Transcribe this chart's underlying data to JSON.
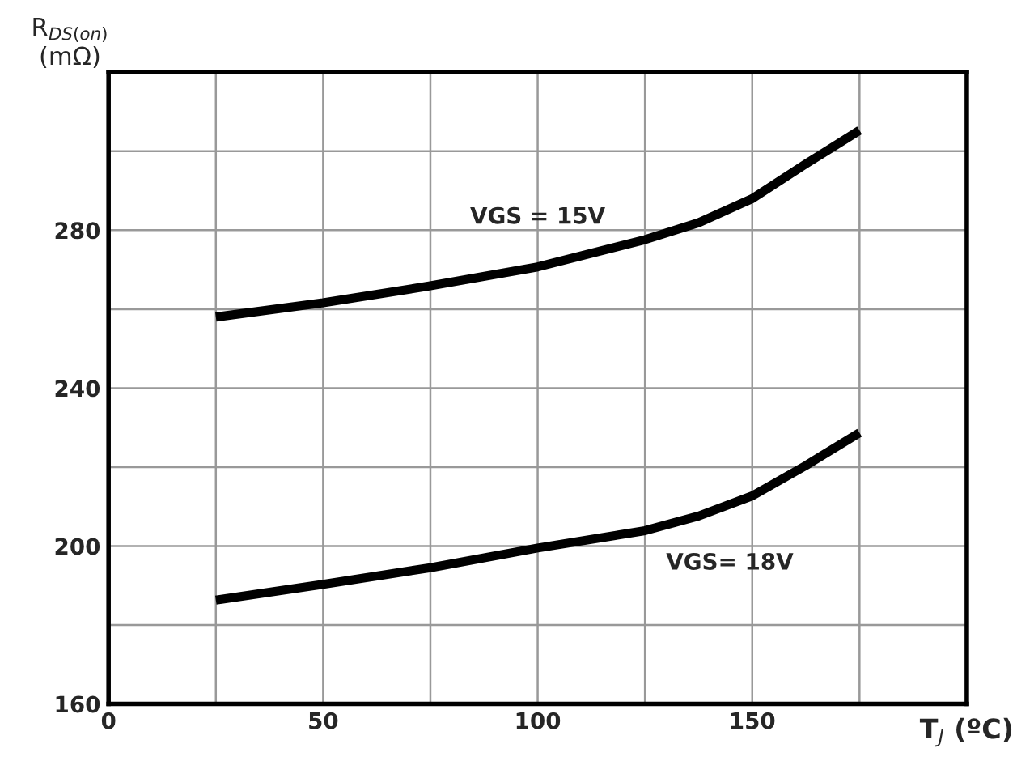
{
  "chart_data": {
    "type": "line",
    "xlabel": "T$_{J}$ (ºC)",
    "ylabel": "R$_{DS(on)}$\n(mΩ)",
    "x": [
      25,
      50,
      75,
      100,
      125,
      137.5,
      150,
      162.5,
      175
    ],
    "series": [
      {
        "name": "VGS = 15V",
        "color": "#000000",
        "values": [
          258,
          261.6,
          265.9,
          270.7,
          277.6,
          281.9,
          288,
          296.8,
          305.3
        ]
      },
      {
        "name": "VGS= 18V",
        "color": "#000000",
        "values": [
          186.3,
          190.3,
          194.5,
          199.5,
          203.9,
          207.6,
          212.7,
          220.4,
          228.7
        ]
      }
    ],
    "xlim": [
      0,
      200
    ],
    "xticks": [
      0,
      50,
      100,
      150,
      {
        "value": 25,
        "label": null
      },
      {
        "value": 75,
        "label": null
      },
      {
        "value": 125,
        "label": null
      },
      {
        "value": 175,
        "label": null
      }
    ],
    "ylim": [
      160,
      320
    ],
    "yticks": [
      160,
      200,
      240,
      280,
      {
        "value": 180,
        "label": null
      },
      {
        "value": 220,
        "label": null
      },
      {
        "value": 260,
        "label": null
      },
      {
        "value": 300,
        "label": null
      }
    ],
    "grid": true,
    "marker": "none",
    "line_style": "solid",
    "legend": false
  }
}
